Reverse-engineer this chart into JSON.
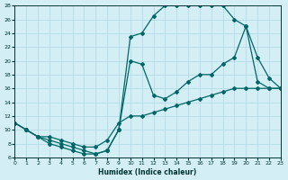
{
  "xlabel": "Humidex (Indice chaleur)",
  "xlim": [
    0,
    23
  ],
  "ylim": [
    6,
    28
  ],
  "xticks": [
    0,
    1,
    2,
    3,
    4,
    5,
    6,
    7,
    8,
    9,
    10,
    11,
    12,
    13,
    14,
    15,
    16,
    17,
    18,
    19,
    20,
    21,
    22,
    23
  ],
  "yticks": [
    6,
    8,
    10,
    12,
    14,
    16,
    18,
    20,
    22,
    24,
    26,
    28
  ],
  "bg_color": "#d4eef5",
  "line_color": "#006666",
  "grid_color": "#b0d8e2",
  "line1_x": [
    0,
    1,
    2,
    3,
    4,
    5,
    6,
    7,
    8,
    9,
    10,
    11,
    12,
    13,
    14,
    15,
    16,
    17,
    18,
    19,
    20,
    21,
    22,
    23
  ],
  "line1_y": [
    11,
    10,
    9,
    8,
    7.5,
    7,
    6.5,
    6.5,
    7,
    10,
    20,
    19.5,
    15,
    14.5,
    15.5,
    17,
    18,
    18,
    19.5,
    20.5,
    25,
    17,
    16,
    16
  ],
  "line2_x": [
    0,
    1,
    2,
    3,
    4,
    5,
    6,
    7,
    8,
    9,
    10,
    11,
    12,
    13,
    14,
    15,
    16,
    17,
    18,
    19,
    20,
    21,
    22,
    23
  ],
  "line2_y": [
    11,
    10,
    9,
    8.5,
    8,
    7.5,
    7,
    6.5,
    7,
    10,
    23.5,
    24,
    26.5,
    28,
    28,
    28,
    28,
    28,
    28,
    26,
    25,
    20.5,
    17.5,
    16
  ],
  "line3_x": [
    0,
    1,
    2,
    3,
    4,
    5,
    6,
    7,
    8,
    9,
    10,
    11,
    12,
    13,
    14,
    15,
    16,
    17,
    18,
    19,
    20,
    21,
    22,
    23
  ],
  "line3_y": [
    11,
    10,
    9,
    9,
    8.5,
    8,
    7.5,
    7.5,
    8.5,
    11,
    12,
    12,
    12.5,
    13,
    13.5,
    14,
    14.5,
    15,
    15.5,
    16,
    16,
    16,
    16,
    16
  ]
}
